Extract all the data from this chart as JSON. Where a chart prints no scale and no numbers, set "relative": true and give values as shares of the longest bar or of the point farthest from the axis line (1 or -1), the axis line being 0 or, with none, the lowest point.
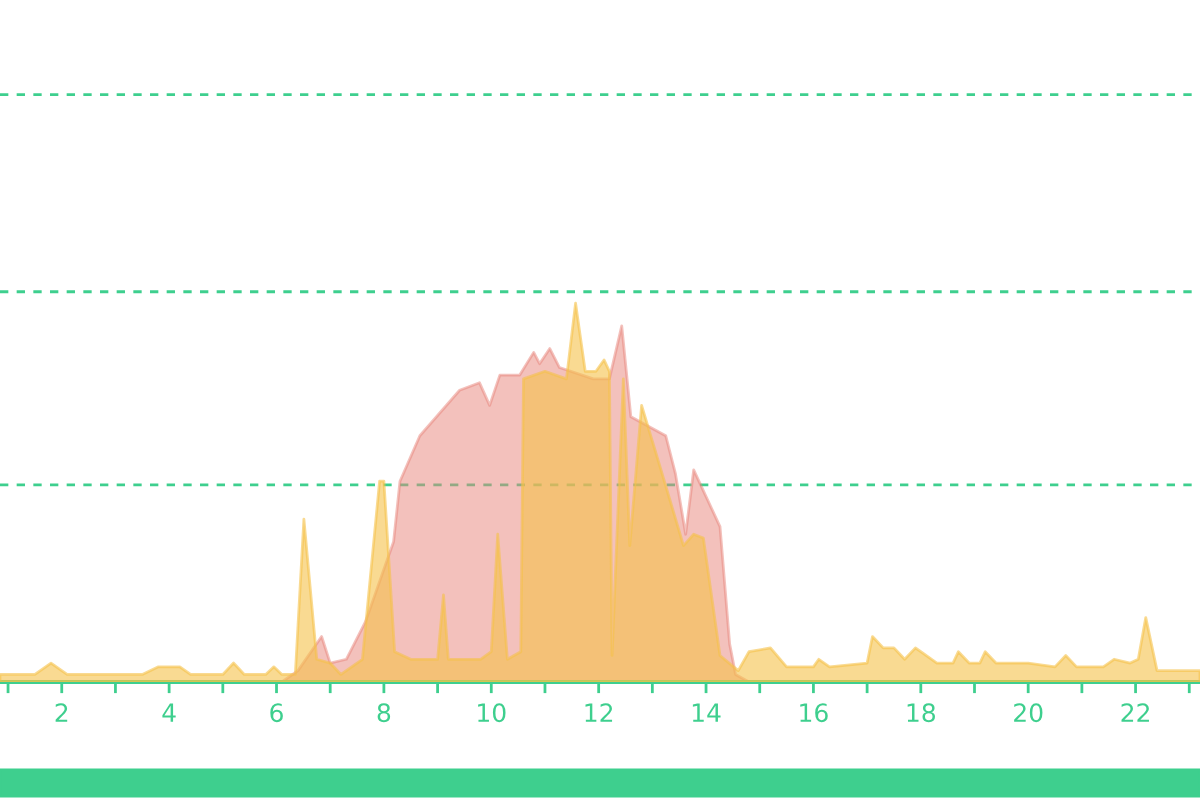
{
  "chart_data": {
    "type": "area",
    "relative": true,
    "ref_lines": [
      {
        "axis": "y",
        "value": 0.52,
        "label": null,
        "color": "#3ecf8e",
        "line_style": "dashed"
      },
      {
        "axis": "y",
        "value": 1.03,
        "label": null,
        "color": "#3ecf8e",
        "line_style": "dashed"
      },
      {
        "axis": "y",
        "value": 1.55,
        "label": null,
        "color": "#3ecf8e",
        "line_style": "dashed"
      }
    ],
    "xlim": [
      0.85,
      23.2
    ],
    "xticks": [
      {
        "value": 1,
        "label": null
      },
      2,
      {
        "value": 3,
        "label": null
      },
      4,
      {
        "value": 5,
        "label": null
      },
      6,
      {
        "value": 7,
        "label": null
      },
      8,
      {
        "value": 9,
        "label": null
      },
      10,
      {
        "value": 11,
        "label": null
      },
      12,
      {
        "value": 13,
        "label": null
      },
      14,
      {
        "value": 15,
        "label": null
      },
      16,
      {
        "value": 17,
        "label": null
      },
      18,
      {
        "value": 19,
        "label": null
      },
      20,
      {
        "value": 21,
        "label": null
      },
      22,
      {
        "value": 23,
        "label": null
      }
    ],
    "tick_labels": "x",
    "series": [
      {
        "color": "#e8847a",
        "x": [
          6.1,
          6.4,
          6.84,
          7.0,
          7.3,
          7.66,
          8.18,
          8.3,
          8.67,
          9.41,
          9.78,
          9.97,
          10.16,
          10.53,
          10.79,
          10.9,
          11.09,
          11.27,
          11.9,
          12.2,
          12.43,
          12.6,
          13.25,
          13.43,
          13.62,
          13.77,
          14.26,
          14.44,
          14.55,
          14.8
        ],
        "values": [
          0,
          0.03,
          0.12,
          0.05,
          0.06,
          0.16,
          0.37,
          0.53,
          0.65,
          0.77,
          0.79,
          0.73,
          0.81,
          0.81,
          0.87,
          0.84,
          0.88,
          0.83,
          0.8,
          0.8,
          0.94,
          0.7,
          0.65,
          0.55,
          0.39,
          0.56,
          0.41,
          0.1,
          0.02,
          0
        ]
      },
      {
        "color": "#f5c24a",
        "x": [
          0.85,
          1.5,
          1.8,
          2.1,
          3.5,
          3.8,
          4.2,
          4.4,
          5.0,
          5.2,
          5.4,
          5.8,
          5.95,
          6.1,
          6.35,
          6.51,
          6.75,
          7.0,
          7.2,
          7.6,
          7.92,
          8.0,
          8.2,
          8.5,
          9.0,
          9.11,
          9.2,
          9.8,
          10.0,
          10.12,
          10.3,
          10.55,
          10.6,
          11.0,
          11.4,
          11.57,
          11.75,
          11.95,
          12.1,
          12.2,
          12.25,
          12.46,
          12.58,
          12.8,
          13.14,
          13.58,
          13.77,
          13.95,
          14.26,
          14.6,
          14.8,
          15.2,
          15.5,
          16.0,
          16.1,
          16.3,
          17.0,
          17.1,
          17.3,
          17.5,
          17.7,
          17.9,
          18.0,
          18.3,
          18.6,
          18.7,
          18.9,
          19.1,
          19.2,
          19.4,
          20.0,
          20.5,
          20.7,
          20.9,
          21.4,
          21.6,
          21.9,
          22.05,
          22.19,
          22.4,
          23.2
        ],
        "values": [
          0.02,
          0.02,
          0.05,
          0.02,
          0.02,
          0.04,
          0.04,
          0.02,
          0.02,
          0.05,
          0.02,
          0.02,
          0.04,
          0.02,
          0.02,
          0.43,
          0.06,
          0.05,
          0.02,
          0.06,
          0.53,
          0.53,
          0.08,
          0.06,
          0.06,
          0.23,
          0.06,
          0.06,
          0.08,
          0.39,
          0.06,
          0.08,
          0.8,
          0.82,
          0.8,
          1,
          0.82,
          0.82,
          0.85,
          0.82,
          0.07,
          0.8,
          0.36,
          0.73,
          0.57,
          0.36,
          0.39,
          0.38,
          0.07,
          0.03,
          0.08,
          0.09,
          0.04,
          0.04,
          0.06,
          0.04,
          0.05,
          0.12,
          0.09,
          0.09,
          0.06,
          0.09,
          0.08,
          0.05,
          0.05,
          0.08,
          0.05,
          0.05,
          0.08,
          0.05,
          0.05,
          0.04,
          0.07,
          0.04,
          0.04,
          0.06,
          0.05,
          0.06,
          0.17,
          0.03,
          0.03
        ]
      }
    ]
  }
}
